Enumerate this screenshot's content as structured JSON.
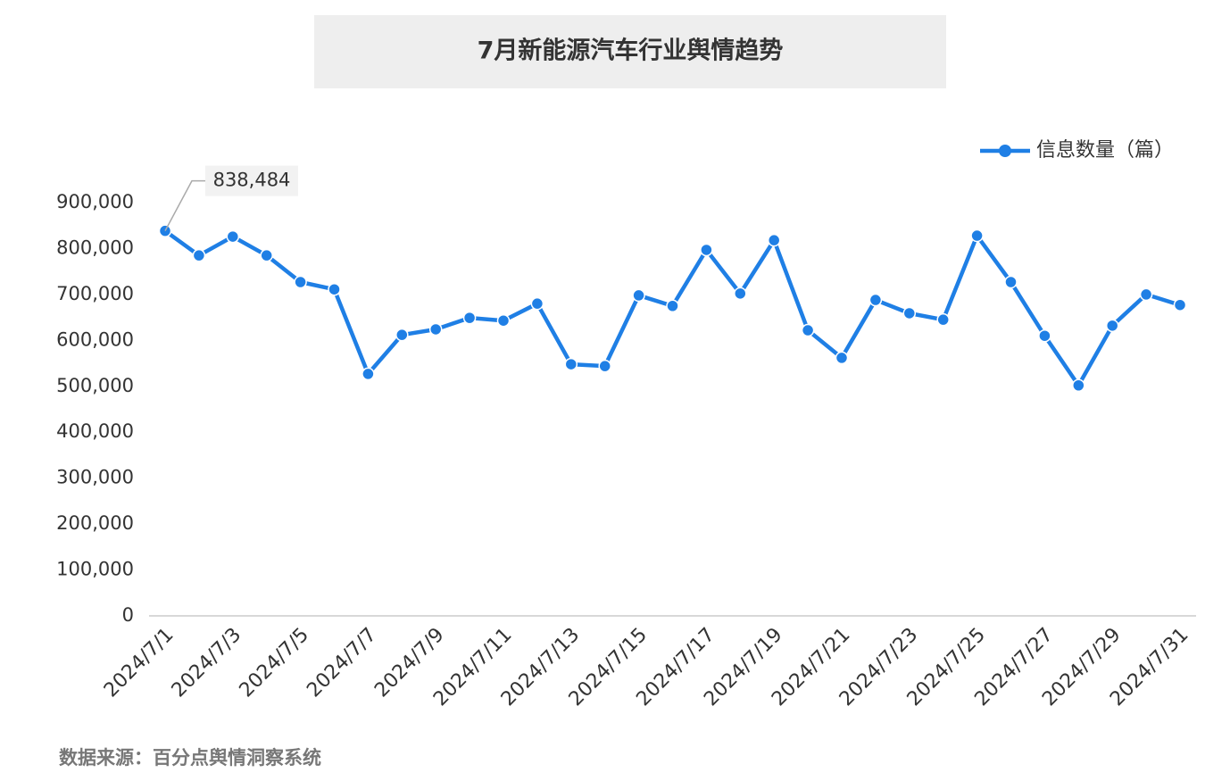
{
  "chart_data": {
    "type": "line",
    "title": "7月新能源汽车行业舆情趋势",
    "source": "数据来源：百分点舆情洞察系统",
    "categories": [
      "2024/7/1",
      null,
      "2024/7/3",
      null,
      "2024/7/5",
      null,
      "2024/7/7",
      null,
      "2024/7/9",
      null,
      "2024/7/11",
      null,
      "2024/7/13",
      null,
      "2024/7/15",
      null,
      "2024/7/17",
      null,
      "2024/7/19",
      null,
      "2024/7/21",
      null,
      "2024/7/23",
      null,
      "2024/7/25",
      null,
      "2024/7/27",
      null,
      "2024/7/29",
      null,
      "2024/7/31"
    ],
    "series": [
      {
        "name": "信息数量（篇）",
        "color": "#1f7fe5",
        "values": [
          838484,
          785000,
          826000,
          785000,
          727000,
          711000,
          527000,
          612000,
          624000,
          649000,
          643000,
          680000,
          548000,
          544000,
          698000,
          675000,
          797000,
          702000,
          818000,
          622000,
          562000,
          688000,
          659000,
          645000,
          828000,
          727000,
          610000,
          502000,
          632000,
          700000,
          677000
        ],
        "value_labels": [
          "838,484",
          null,
          null,
          null,
          null,
          null,
          null,
          null,
          null,
          null,
          null,
          null,
          null,
          null,
          null,
          null,
          null,
          null,
          null,
          null,
          null,
          null,
          null,
          null,
          null,
          null,
          null,
          null,
          null,
          null,
          null
        ]
      }
    ],
    "ylim": [
      0,
      900000
    ],
    "yticks": [
      0,
      {
        "value": 100000,
        "label": "100,000"
      },
      {
        "value": 200000,
        "label": "200,000"
      },
      {
        "value": 300000,
        "label": "300,000"
      },
      {
        "value": 400000,
        "label": "400,000"
      },
      {
        "value": 500000,
        "label": "500,000"
      },
      {
        "value": 600000,
        "label": "600,000"
      },
      {
        "value": 700000,
        "label": "700,000"
      },
      {
        "value": 800000,
        "label": "800,000"
      },
      {
        "value": 900000,
        "label": "900,000"
      }
    ],
    "legend": "top-right",
    "grid": false
  }
}
